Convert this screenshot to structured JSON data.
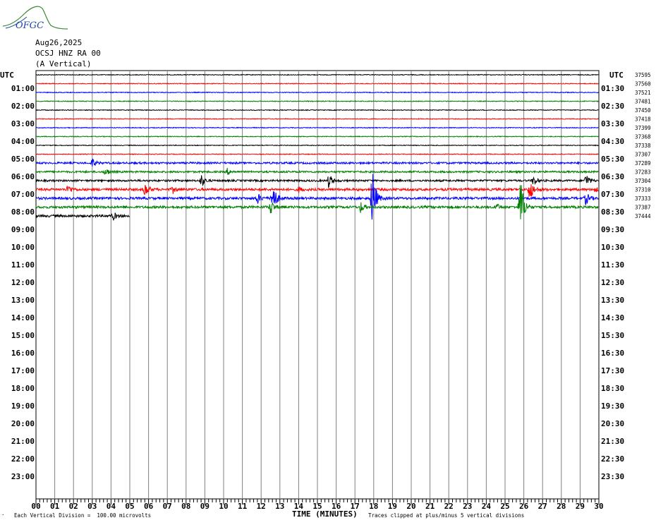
{
  "header": {
    "logo_text": "OFGC",
    "date": "Aug26,2025",
    "station": "OCSJ HNZ RA 00",
    "component": "(A Vertical)"
  },
  "footer": {
    "scale_note": "Each Vertical Division =  100.00 microvolts",
    "x_axis_title": "TIME (MINUTES)",
    "clip_note": "Traces clipped at plus/minus 5 vertical divisions"
  },
  "chart_data": {
    "type": "line",
    "title": "",
    "xlabel": "TIME (MINUTES)",
    "ylabel": "UTC",
    "xlim": [
      0,
      30
    ],
    "x_ticks": [
      "00",
      "01",
      "02",
      "03",
      "04",
      "05",
      "06",
      "07",
      "08",
      "09",
      "10",
      "11",
      "12",
      "13",
      "14",
      "15",
      "16",
      "17",
      "18",
      "19",
      "20",
      "21",
      "22",
      "23",
      "24",
      "25",
      "26",
      "27",
      "28",
      "29",
      "30"
    ],
    "left_axis_label": "UTC",
    "right_axis_label": "UTC",
    "left_hour_labels": [
      "01:00",
      "02:00",
      "03:00",
      "04:00",
      "05:00",
      "06:00",
      "07:00",
      "08:00",
      "09:00",
      "10:00",
      "11:00",
      "12:00",
      "13:00",
      "14:00",
      "15:00",
      "16:00",
      "17:00",
      "18:00",
      "19:00",
      "20:00",
      "21:00",
      "22:00",
      "23:00"
    ],
    "right_hour_labels": [
      "01:30",
      "02:30",
      "03:30",
      "04:30",
      "05:30",
      "06:30",
      "07:30",
      "08:30",
      "09:30",
      "10:30",
      "11:30",
      "12:30",
      "13:30",
      "14:30",
      "15:30",
      "16:30",
      "17:30",
      "18:30",
      "19:30",
      "20:30",
      "21:30",
      "22:30",
      "23:30"
    ],
    "trace_colors": [
      "#000000",
      "#ff0000",
      "#0000ff",
      "#008000"
    ],
    "trace_values": [
      "37595",
      "37560",
      "37521",
      "37481",
      "37450",
      "37418",
      "37399",
      "37368",
      "37338",
      "37307",
      "37289",
      "37283",
      "37304",
      "37310",
      "37333",
      "37387",
      "37444"
    ],
    "trace_count": 17,
    "trace_minutes": 30,
    "last_trace_end_minute": 5,
    "events": [
      {
        "trace": 10,
        "minute": 3.0,
        "amp": 7
      },
      {
        "trace": 11,
        "minute": 3.7,
        "amp": 7
      },
      {
        "trace": 11,
        "minute": 10.2,
        "amp": 5
      },
      {
        "trace": 12,
        "minute": 8.8,
        "amp": 10
      },
      {
        "trace": 12,
        "minute": 15.6,
        "amp": 12
      },
      {
        "trace": 12,
        "minute": 26.5,
        "amp": 8
      },
      {
        "trace": 12,
        "minute": 29.3,
        "amp": 12
      },
      {
        "trace": 13,
        "minute": 1.7,
        "amp": 8
      },
      {
        "trace": 13,
        "minute": 5.8,
        "amp": 12
      },
      {
        "trace": 13,
        "minute": 7.3,
        "amp": 5
      },
      {
        "trace": 13,
        "minute": 14.0,
        "amp": 4
      },
      {
        "trace": 13,
        "minute": 26.3,
        "amp": 20
      },
      {
        "trace": 13,
        "minute": 29.8,
        "amp": 5
      },
      {
        "trace": 14,
        "minute": 11.8,
        "amp": 8
      },
      {
        "trace": 14,
        "minute": 12.6,
        "amp": 30
      },
      {
        "trace": 14,
        "minute": 17.9,
        "amp": 55
      },
      {
        "trace": 14,
        "minute": 29.3,
        "amp": 10
      },
      {
        "trace": 15,
        "minute": 12.5,
        "amp": 12
      },
      {
        "trace": 15,
        "minute": 17.3,
        "amp": 8
      },
      {
        "trace": 15,
        "minute": 24.5,
        "amp": 6
      },
      {
        "trace": 15,
        "minute": 25.8,
        "amp": 55
      },
      {
        "trace": 16,
        "minute": 4.1,
        "amp": 6
      }
    ]
  }
}
